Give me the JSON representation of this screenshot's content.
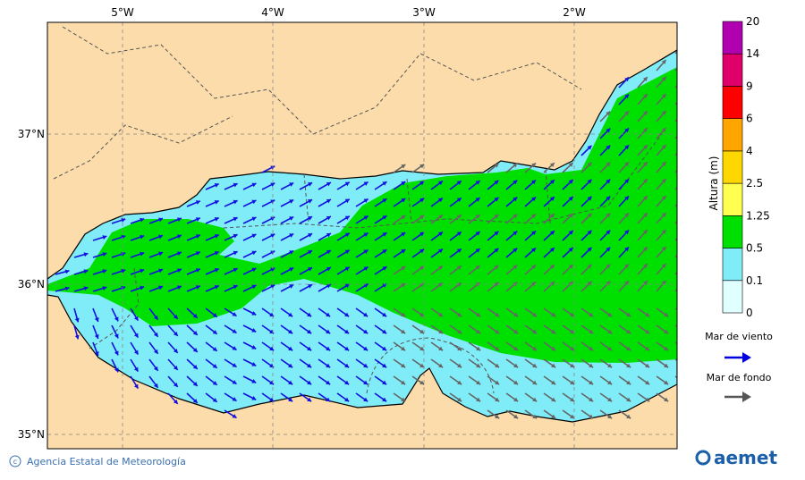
{
  "map": {
    "lon_ticks": [
      "5°W",
      "4°W",
      "3°W",
      "2°W"
    ],
    "lat_ticks": [
      "37°N",
      "36°N",
      "35°N"
    ]
  },
  "colorbar": {
    "title": "Altura (m)",
    "levels": [
      "0",
      "0.1",
      "0.5",
      "1.25",
      "2.5",
      "4",
      "6",
      "9",
      "14",
      "20"
    ]
  },
  "legend": {
    "wind_sea": "Mar de viento",
    "swell": "Mar de fondo"
  },
  "footer": {
    "credit": "Agencia Estatal de Meteorología",
    "logo": "aemet"
  }
}
